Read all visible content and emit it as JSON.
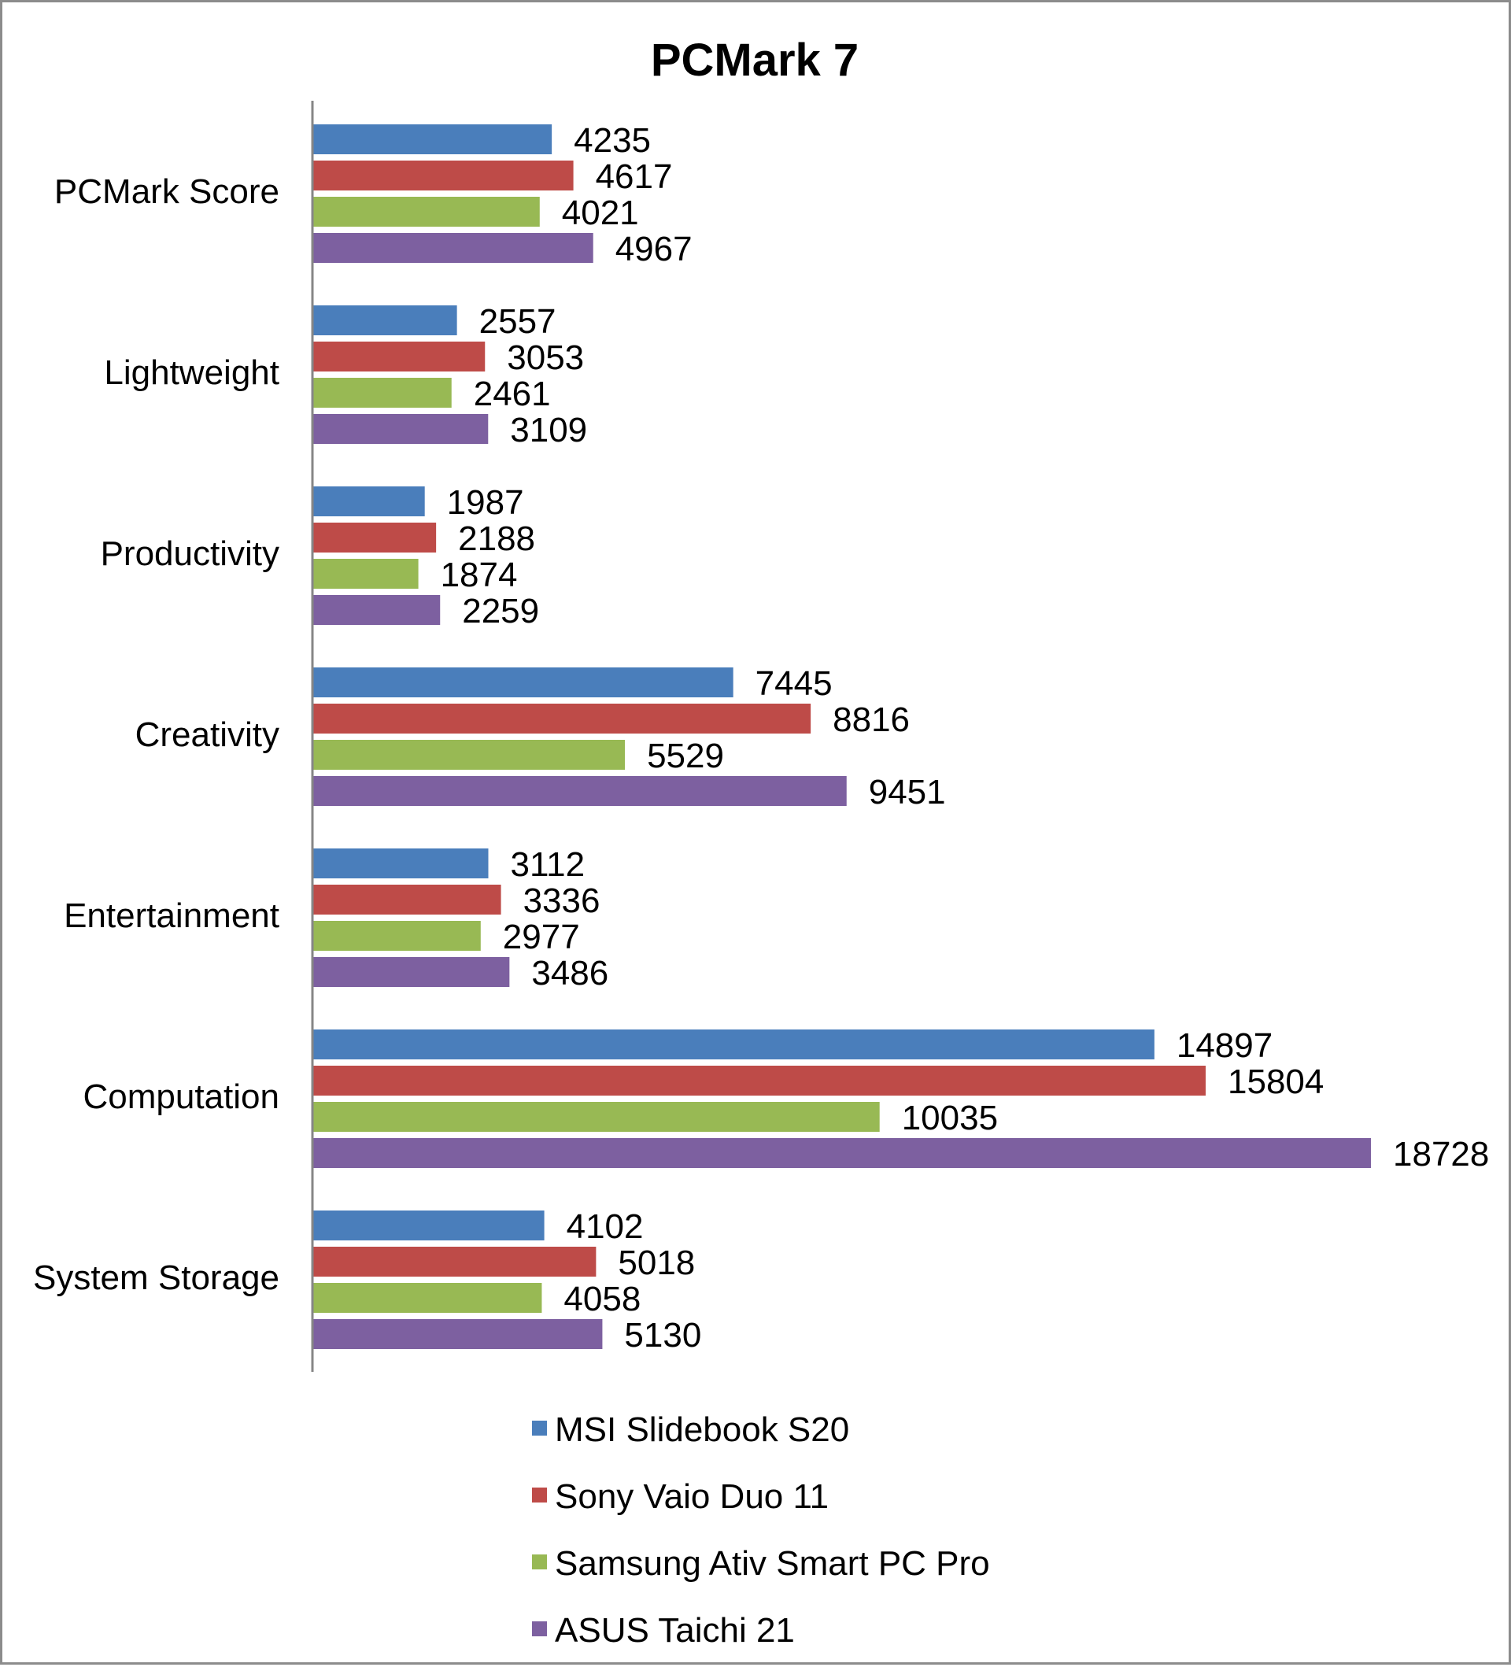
{
  "chart_data": {
    "type": "bar",
    "orientation": "horizontal",
    "title": "PCMark 7",
    "xlabel": "",
    "ylabel": "",
    "categories": [
      "PCMark Score",
      "Lightweight",
      "Productivity",
      "Creativity",
      "Entertainment",
      "Computation",
      "System Storage"
    ],
    "series": [
      {
        "name": "MSI Slidebook S20",
        "color": "#4a7ebb",
        "values": [
          4235,
          2557,
          1987,
          7445,
          3112,
          14897,
          4102
        ]
      },
      {
        "name": "Sony Vaio Duo 11",
        "color": "#be4b48",
        "values": [
          4617,
          3053,
          2188,
          8816,
          3336,
          15804,
          5018
        ]
      },
      {
        "name": "Samsung Ativ Smart PC Pro",
        "color": "#98b954",
        "values": [
          4021,
          2461,
          1874,
          5529,
          2977,
          10035,
          4058
        ]
      },
      {
        "name": "ASUS Taichi 21",
        "color": "#7d60a0",
        "values": [
          4967,
          3109,
          2259,
          9451,
          3486,
          18728,
          5130
        ]
      }
    ],
    "xlim": [
      0,
      18728
    ],
    "grid": false,
    "data_labels": true,
    "legend_position": "bottom"
  }
}
